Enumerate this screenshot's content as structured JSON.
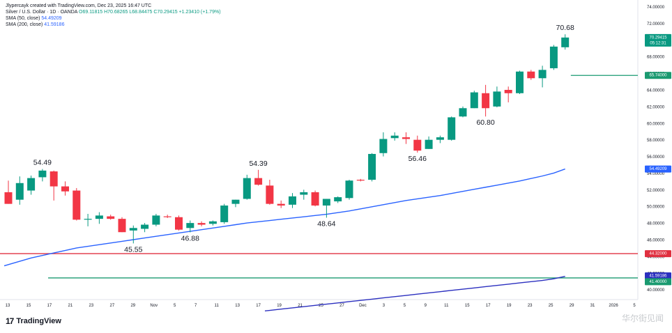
{
  "header": {
    "author_line": "Jlypercayk created with TradingView.com, Dec 23, 2025 16:47 UTC",
    "symbol_line": "Silver / U.S. Dollar · 1D · OANDA",
    "ohlc": {
      "open": "O69.11815",
      "high": "H70.68265",
      "low": "L68.84475",
      "close": "C70.29415",
      "change": "+1.23410 (+1.79%)"
    },
    "sma50": {
      "label": "SMA (50, close)",
      "value": "54.49209"
    },
    "sma200": {
      "label": "SMA (200, close)",
      "value": "41.59186"
    }
  },
  "branding": {
    "logo_text": "TradingView",
    "logo_mark": "17",
    "watermark": "华尔街见闻"
  },
  "colors": {
    "up": "#089981",
    "down": "#f23645",
    "sma50": "#2962ff",
    "sma200": "#2b2fbf",
    "level_red": "#e03040",
    "level_green": "#1a9a70"
  },
  "chart_data": {
    "type": "candlestick",
    "ylim": [
      38.8,
      74.8
    ],
    "y_ticks": [
      "40.00000",
      "42.00000",
      "44.00000",
      "46.00000",
      "48.00000",
      "50.00000",
      "52.00000",
      "54.00000",
      "56.00000",
      "58.00000",
      "60.00000",
      "62.00000",
      "64.00000",
      "66.00000",
      "68.00000",
      "70.00000",
      "72.00000",
      "74.00000"
    ],
    "x_ticks": [
      "13",
      "15",
      "17",
      "21",
      "23",
      "27",
      "29",
      "Nov",
      "5",
      "7",
      "11",
      "13",
      "17",
      "19",
      "21",
      "25",
      "27",
      "Dec",
      "3",
      "5",
      "9",
      "11",
      "15",
      "17",
      "19",
      "23",
      "25",
      "29",
      "31",
      "2026",
      "5"
    ],
    "candles": [
      [
        51.7,
        53.1,
        50.3,
        50.3
      ],
      [
        50.8,
        53.6,
        50.2,
        52.8
      ],
      [
        51.9,
        53.7,
        51.4,
        53.4
      ],
      [
        53.5,
        54.49,
        53.0,
        54.3
      ],
      [
        54.2,
        54.3,
        50.7,
        52.4
      ],
      [
        52.4,
        53.0,
        51.3,
        51.8
      ],
      [
        51.9,
        52.2,
        48.3,
        48.4
      ],
      [
        48.4,
        49.1,
        47.6,
        48.5
      ],
      [
        48.5,
        49.3,
        47.9,
        48.9
      ],
      [
        48.8,
        49.0,
        48.4,
        48.5
      ],
      [
        48.5,
        48.7,
        46.9,
        46.9
      ],
      [
        47.1,
        47.7,
        45.55,
        47.4
      ],
      [
        47.3,
        48.0,
        46.9,
        47.8
      ],
      [
        47.8,
        49.1,
        47.6,
        48.9
      ],
      [
        48.8,
        49.0,
        48.6,
        48.7
      ],
      [
        48.7,
        48.9,
        47.1,
        47.2
      ],
      [
        47.4,
        48.3,
        46.88,
        48.0
      ],
      [
        48.0,
        48.2,
        47.6,
        47.8
      ],
      [
        47.9,
        48.3,
        47.7,
        48.2
      ],
      [
        48.1,
        50.3,
        47.9,
        50.1
      ],
      [
        50.3,
        50.8,
        49.9,
        50.8
      ],
      [
        50.9,
        53.8,
        50.8,
        53.4
      ],
      [
        53.4,
        54.39,
        52.5,
        52.6
      ],
      [
        52.5,
        53.2,
        50.2,
        50.3
      ],
      [
        50.3,
        50.7,
        49.8,
        50.1
      ],
      [
        50.2,
        51.6,
        49.8,
        51.2
      ],
      [
        51.4,
        52.0,
        50.8,
        51.7
      ],
      [
        51.7,
        51.9,
        50.0,
        50.1
      ],
      [
        50.1,
        50.9,
        48.64,
        50.9
      ],
      [
        50.6,
        51.2,
        50.4,
        51.1
      ],
      [
        51.0,
        53.2,
        50.8,
        53.1
      ],
      [
        53.2,
        53.3,
        53.0,
        53.1
      ],
      [
        53.2,
        56.4,
        53.0,
        56.3
      ],
      [
        56.4,
        58.9,
        56.0,
        58.1
      ],
      [
        58.2,
        58.9,
        57.9,
        58.5
      ],
      [
        58.3,
        58.9,
        57.5,
        58.1
      ],
      [
        58.0,
        58.5,
        56.46,
        56.7
      ],
      [
        56.9,
        58.4,
        56.9,
        58.0
      ],
      [
        58.0,
        58.5,
        57.6,
        58.3
      ],
      [
        58.0,
        60.8,
        57.9,
        60.7
      ],
      [
        60.8,
        62.0,
        60.7,
        61.8
      ],
      [
        61.8,
        63.9,
        61.8,
        63.7
      ],
      [
        63.6,
        64.6,
        60.8,
        61.8
      ],
      [
        62.0,
        64.4,
        61.9,
        63.8
      ],
      [
        64.0,
        64.4,
        62.5,
        63.6
      ],
      [
        63.6,
        66.3,
        63.5,
        66.2
      ],
      [
        66.2,
        66.4,
        65.2,
        65.4
      ],
      [
        65.4,
        66.9,
        64.3,
        66.4
      ],
      [
        66.6,
        69.4,
        66.4,
        69.2
      ],
      [
        69.12,
        70.68,
        68.84,
        70.29
      ]
    ],
    "sma50": [
      43.0,
      43.4,
      43.8,
      44.1,
      44.4,
      44.7,
      45.0,
      45.2,
      45.4,
      45.6,
      45.8,
      46.0,
      46.2,
      46.4,
      46.6,
      46.8,
      47.0,
      47.2,
      47.4,
      47.6,
      47.8,
      48.0,
      48.15,
      48.3,
      48.45,
      48.6,
      48.75,
      48.9,
      49.05,
      49.25,
      49.45,
      49.7,
      49.95,
      50.2,
      50.45,
      50.7,
      50.9,
      51.1,
      51.3,
      51.55,
      51.8,
      52.05,
      52.3,
      52.55,
      52.8,
      53.05,
      53.35,
      53.65,
      54.0,
      54.49
    ],
    "sma200": [
      null,
      null,
      null,
      null,
      null,
      null,
      null,
      null,
      null,
      null,
      null,
      null,
      null,
      null,
      null,
      null,
      null,
      null,
      null,
      null,
      null,
      null,
      null,
      37.5,
      37.65,
      37.8,
      37.95,
      38.1,
      38.25,
      38.4,
      38.55,
      38.7,
      38.85,
      39.0,
      39.15,
      39.3,
      39.45,
      39.6,
      39.75,
      39.9,
      40.05,
      40.2,
      40.35,
      40.5,
      40.65,
      40.8,
      40.95,
      41.1,
      41.3,
      41.59
    ],
    "levels": [
      {
        "value": 44.32,
        "label": "44.32000",
        "color": "#e03040",
        "start": 0
      },
      {
        "value": 41.4,
        "label": "41.40000",
        "color": "#1a9a70",
        "start": 3.5
      },
      {
        "value": 65.74,
        "label": "65.74000",
        "color": "#1a9a70",
        "start": 49.5
      }
    ],
    "annotations": [
      {
        "text": "54.49",
        "index": 3,
        "value": 54.49,
        "pos": "above"
      },
      {
        "text": "45.55",
        "index": 11,
        "value": 45.55,
        "pos": "below"
      },
      {
        "text": "46.88",
        "index": 16,
        "value": 46.88,
        "pos": "below"
      },
      {
        "text": "54.39",
        "index": 22,
        "value": 54.39,
        "pos": "above"
      },
      {
        "text": "48.64",
        "index": 28,
        "value": 48.64,
        "pos": "below"
      },
      {
        "text": "56.46",
        "index": 36,
        "value": 56.46,
        "pos": "below"
      },
      {
        "text": "60.80",
        "index": 42,
        "value": 60.8,
        "pos": "below"
      },
      {
        "text": "70.68",
        "index": 49,
        "value": 70.68,
        "pos": "above"
      }
    ],
    "price_labels": [
      {
        "value": 70.29,
        "lines": [
          "70.29415",
          "05:12:31"
        ],
        "color": "#089981"
      },
      {
        "value": 65.74,
        "lines": [
          "65.74000"
        ],
        "color": "#1a9a70"
      },
      {
        "value": 54.49,
        "lines": [
          "54.49209"
        ],
        "color": "#2962ff"
      },
      {
        "value": 44.32,
        "lines": [
          "44.32000"
        ],
        "color": "#e03040"
      },
      {
        "value": 41.65,
        "lines": [
          "41.59186"
        ],
        "color": "#2b2fbf"
      },
      {
        "value": 40.95,
        "lines": [
          "41.40000"
        ],
        "color": "#1a9a70"
      }
    ]
  }
}
